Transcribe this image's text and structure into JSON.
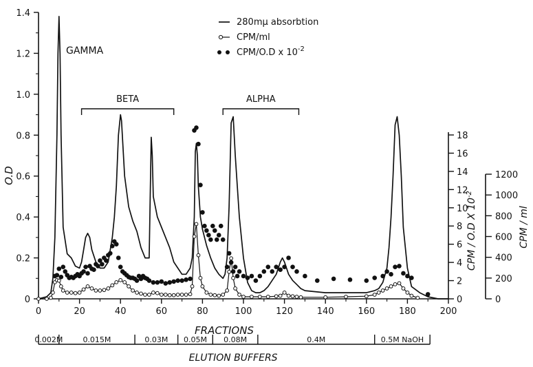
{
  "chart_data": {
    "type": "line",
    "x_axis": {
      "label": "FRACTIONS",
      "range": [
        0,
        200
      ],
      "ticks": [
        0,
        20,
        40,
        60,
        80,
        100,
        120,
        140,
        160,
        180,
        200
      ]
    },
    "y_axis_left": {
      "label": "O.D",
      "range": [
        0,
        1.4
      ],
      "ticks": [
        "0",
        "0.2",
        "0.4",
        "0.6",
        "0.8",
        "1.0",
        "1.2",
        "1.4"
      ]
    },
    "y_axis_right_1": {
      "label": "CPM / O.D X 10",
      "label_exp": "-2",
      "range": [
        0,
        18
      ],
      "ticks": [
        "0",
        "2",
        "4",
        "6",
        "8",
        "10",
        "12",
        "14",
        "16",
        "18"
      ]
    },
    "y_axis_right_2": {
      "label": "CPM / ml",
      "range": [
        0,
        1200
      ],
      "ticks": [
        "0",
        "200",
        "400",
        "600",
        "800",
        "1000",
        "1200"
      ]
    },
    "legend": {
      "placement": "top-center",
      "entries": [
        {
          "text": "280mμ absorbtion"
        },
        {
          "text": "CPM/ml"
        },
        {
          "text": "CPM/O.D x 10",
          "exp": "-2"
        }
      ]
    },
    "annotations": {
      "gamma": "GAMMA",
      "beta": {
        "text": "BETA",
        "from": 21,
        "to": 66
      },
      "alpha": {
        "text": "ALPHA",
        "from": 90,
        "to": 127
      }
    },
    "buffers": {
      "label": "ELUTION BUFFERS",
      "segments": [
        {
          "text": "0.002M",
          "from": 0,
          "to": 10
        },
        {
          "text": "0.015M",
          "from": 10,
          "to": 47
        },
        {
          "text": "0.03M",
          "from": 47,
          "to": 68
        },
        {
          "text": "0.05M",
          "from": 68,
          "to": 85
        },
        {
          "text": "0.08M",
          "from": 85,
          "to": 107
        },
        {
          "text": "0.4M",
          "from": 107,
          "to": 164
        },
        {
          "text": "0.5M NaOH",
          "from": 164,
          "to": 191
        }
      ]
    },
    "series": [
      {
        "name": "280mμ absorbtion",
        "axis": "left",
        "x": [
          0,
          4,
          6,
          7,
          8,
          9,
          9.5,
          10,
          10.5,
          11,
          12,
          14,
          16,
          18,
          20,
          21,
          22,
          23,
          24,
          25,
          26,
          28,
          30,
          32,
          34,
          36,
          37,
          38,
          39,
          40,
          40.5,
          41,
          42,
          44,
          46,
          48,
          50,
          52,
          54,
          54.5,
          55,
          55.5,
          56,
          58,
          60,
          62,
          64,
          66,
          68,
          70,
          72,
          74,
          75,
          76,
          76.5,
          77,
          77.5,
          78,
          79,
          80,
          82,
          84,
          86,
          88,
          90,
          91,
          92,
          93,
          94,
          95,
          96,
          98,
          100,
          102,
          104,
          106,
          108,
          110,
          112,
          114,
          116,
          118,
          119,
          120,
          121,
          122,
          124,
          126,
          128,
          130,
          140,
          150,
          160,
          164,
          166,
          168,
          170,
          171,
          172,
          173,
          174,
          175,
          176,
          177,
          178,
          180,
          182,
          186,
          190,
          195,
          200
        ],
        "y": [
          0,
          0.01,
          0.03,
          0.1,
          0.3,
          0.8,
          1.2,
          1.38,
          1.2,
          0.8,
          0.35,
          0.22,
          0.2,
          0.16,
          0.15,
          0.18,
          0.24,
          0.3,
          0.32,
          0.3,
          0.24,
          0.18,
          0.15,
          0.15,
          0.18,
          0.3,
          0.4,
          0.55,
          0.8,
          0.9,
          0.87,
          0.78,
          0.6,
          0.45,
          0.38,
          0.33,
          0.25,
          0.2,
          0.2,
          0.5,
          0.79,
          0.7,
          0.5,
          0.4,
          0.35,
          0.3,
          0.25,
          0.18,
          0.15,
          0.12,
          0.12,
          0.15,
          0.2,
          0.4,
          0.72,
          0.76,
          0.7,
          0.55,
          0.4,
          0.34,
          0.26,
          0.2,
          0.15,
          0.12,
          0.1,
          0.12,
          0.2,
          0.45,
          0.86,
          0.89,
          0.7,
          0.4,
          0.2,
          0.08,
          0.04,
          0.03,
          0.03,
          0.04,
          0.06,
          0.09,
          0.12,
          0.18,
          0.2,
          0.18,
          0.15,
          0.12,
          0.09,
          0.07,
          0.05,
          0.04,
          0.03,
          0.03,
          0.03,
          0.04,
          0.05,
          0.08,
          0.15,
          0.25,
          0.4,
          0.6,
          0.85,
          0.89,
          0.8,
          0.6,
          0.35,
          0.15,
          0.06,
          0.03,
          0.01,
          0,
          0
        ]
      },
      {
        "name": "CPM/ml",
        "axis": "right2",
        "x": [
          0,
          4,
          6,
          7,
          8,
          9,
          10,
          11,
          12,
          14,
          16,
          18,
          20,
          22,
          24,
          26,
          28,
          30,
          32,
          34,
          36,
          38,
          40,
          42,
          44,
          46,
          48,
          50,
          52,
          54,
          56,
          58,
          60,
          62,
          64,
          66,
          68,
          70,
          72,
          74,
          75,
          76,
          77,
          78,
          79,
          80,
          82,
          84,
          86,
          88,
          90,
          92,
          93,
          94,
          95,
          96,
          98,
          100,
          104,
          108,
          112,
          116,
          118,
          120,
          122,
          124,
          126,
          128,
          140,
          150,
          160,
          164,
          166,
          168,
          170,
          172,
          174,
          176,
          178,
          180,
          182,
          185
        ],
        "y": [
          0,
          0,
          10,
          60,
          160,
          180,
          175,
          120,
          80,
          60,
          60,
          55,
          60,
          90,
          120,
          100,
          80,
          80,
          85,
          100,
          130,
          160,
          180,
          160,
          120,
          80,
          60,
          50,
          40,
          40,
          60,
          55,
          40,
          40,
          35,
          35,
          40,
          40,
          40,
          45,
          120,
          600,
          720,
          420,
          200,
          120,
          60,
          40,
          35,
          30,
          40,
          80,
          260,
          390,
          200,
          100,
          40,
          20,
          20,
          20,
          20,
          25,
          30,
          60,
          30,
          25,
          20,
          15,
          15,
          20,
          25,
          40,
          60,
          80,
          100,
          120,
          140,
          150,
          100,
          60,
          30,
          10
        ]
      },
      {
        "name": "CPM/O.D x 10-2",
        "axis": "right1",
        "x": [
          8,
          9,
          10,
          11,
          12,
          13,
          14,
          15,
          16,
          17,
          18,
          19,
          20,
          21,
          22,
          23,
          24,
          25,
          26,
          27,
          28,
          29,
          30,
          31,
          32,
          33,
          34,
          35,
          36,
          37,
          38,
          39,
          40,
          41,
          42,
          43,
          44,
          45,
          46,
          47,
          48,
          49,
          50,
          51,
          52,
          53,
          54,
          56,
          58,
          60,
          62,
          64,
          66,
          68,
          70,
          72,
          74,
          76,
          77,
          78,
          79,
          80,
          81,
          82,
          83,
          84,
          85,
          86,
          87,
          88,
          89,
          90,
          92,
          93,
          94,
          95,
          96,
          97,
          98,
          100,
          102,
          104,
          106,
          108,
          110,
          112,
          114,
          116,
          118,
          120,
          122,
          124,
          126,
          130,
          136,
          144,
          152,
          160,
          164,
          168,
          170,
          172,
          174,
          176,
          178,
          180,
          182,
          190
        ],
        "y": [
          2.5,
          2.6,
          3.3,
          2.4,
          3.5,
          3.0,
          2.6,
          2.3,
          2.4,
          2.3,
          2.5,
          2.7,
          2.5,
          2.8,
          3.0,
          3.5,
          2.8,
          3.6,
          3.3,
          3.2,
          3.8,
          3.6,
          4.2,
          3.8,
          4.5,
          4.2,
          4.8,
          5.0,
          5.8,
          6.3,
          6.0,
          4.5,
          3.5,
          3.0,
          2.8,
          2.6,
          2.4,
          2.3,
          2.3,
          2.2,
          2.0,
          2.5,
          2.2,
          2.5,
          2.3,
          2.2,
          2.0,
          1.8,
          1.8,
          1.9,
          1.7,
          1.8,
          1.9,
          2.0,
          2.0,
          2.1,
          2.2,
          18.5,
          18.8,
          17.0,
          12.5,
          9.5,
          8.0,
          7.5,
          7.0,
          6.5,
          8.0,
          7.5,
          6.5,
          7.0,
          8.0,
          6.5,
          3.5,
          5.0,
          4.0,
          3.0,
          3.5,
          2.5,
          3.0,
          2.5,
          2.3,
          2.5,
          2.0,
          2.5,
          3.0,
          3.5,
          3.0,
          3.5,
          3.2,
          3.5,
          4.5,
          3.5,
          3.0,
          2.5,
          2.0,
          2.2,
          2.1,
          2.0,
          2.3,
          2.5,
          3.0,
          2.7,
          3.5,
          3.6,
          2.8,
          2.5,
          2.3,
          0.5
        ]
      }
    ]
  }
}
